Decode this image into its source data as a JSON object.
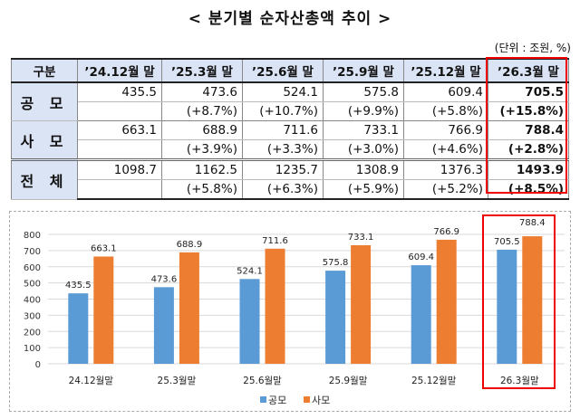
{
  "title": "< 분기별 순자산총액 추이 >",
  "unit": "(단위 : 조원, %)",
  "table": {
    "headers": [
      "구분",
      "’24.12월 말",
      "’25.3월 말",
      "’25.6월 말",
      "’25.9월 말",
      "’25.12월 말",
      "’26.3월 말"
    ],
    "rows": [
      {
        "label": "공 모",
        "values": [
          "435.5",
          "473.6",
          "524.1",
          "575.8",
          "609.4",
          "705.5"
        ],
        "growth": [
          "",
          "(+8.7%)",
          "(+10.7%)",
          "(+9.9%)",
          "(+5.8%)",
          "(+15.8%)"
        ]
      },
      {
        "label": "사 모",
        "values": [
          "663.1",
          "688.9",
          "711.6",
          "733.1",
          "766.9",
          "788.4"
        ],
        "growth": [
          "",
          "(+3.9%)",
          "(+3.3%)",
          "(+3.0%)",
          "(+4.6%)",
          "(+2.8%)"
        ]
      },
      {
        "label": "전 체",
        "values": [
          "1098.7",
          "1162.5",
          "1235.7",
          "1308.9",
          "1376.3",
          "1493.9"
        ],
        "growth": [
          "",
          "(+5.8%)",
          "(+6.3%)",
          "(+5.9%)",
          "(+5.2%)",
          "(+8.5%)"
        ]
      }
    ]
  },
  "chart_data": {
    "type": "bar",
    "categories": [
      "24.12월말",
      "25.3월말",
      "25.6월말",
      "25.9월말",
      "25.12월말",
      "26.3월말"
    ],
    "series": [
      {
        "name": "공모",
        "color": "#5b9bd5",
        "values": [
          435.5,
          473.6,
          524.1,
          575.8,
          609.4,
          705.5
        ]
      },
      {
        "name": "사모",
        "color": "#ed7d31",
        "values": [
          663.1,
          688.9,
          711.6,
          733.1,
          766.9,
          788.4
        ]
      }
    ],
    "yticks": [
      0,
      100,
      200,
      300,
      400,
      500,
      600,
      700,
      800
    ],
    "ylim": [
      0,
      800
    ],
    "legend": "bottom",
    "grid": true,
    "title": "",
    "xlabel": "",
    "ylabel": ""
  }
}
